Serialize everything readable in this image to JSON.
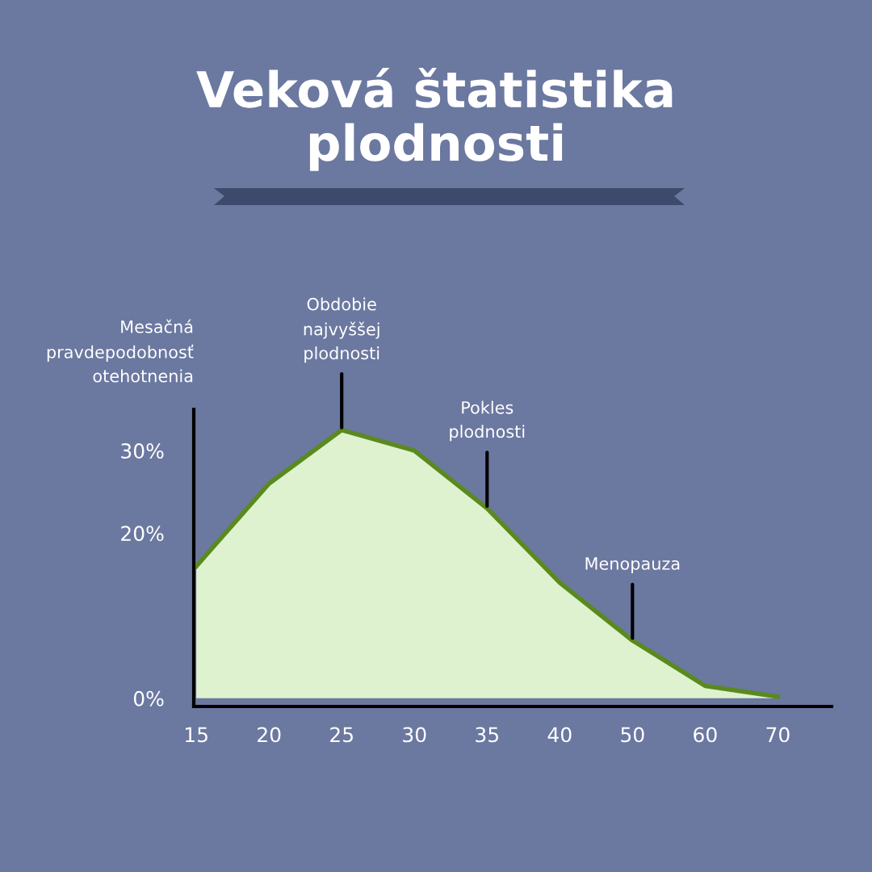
{
  "chart_data": {
    "type": "area",
    "title": "Veková štatistika plodnosti",
    "ylabel": "Mesačná pravdepodobnosť otehotnenia",
    "categories": [
      "15",
      "20",
      "25",
      "30",
      "35",
      "40",
      "50",
      "60",
      "70"
    ],
    "series": [
      {
        "color": "#dff2cf",
        "values": [
          16,
          26,
          32.5,
          30,
          23,
          14,
          7,
          1.5,
          0.2
        ]
      }
    ],
    "ylim": [
      -1,
      35
    ],
    "yticks": [
      {
        "value": 0,
        "label": "0%"
      },
      {
        "value": 20,
        "label": "20%"
      },
      {
        "value": 30,
        "label": "30%"
      }
    ],
    "grid": false,
    "legend": false,
    "annotations": [
      {
        "text": "Obdobie najvyššej plodnosti",
        "x": "25",
        "y": 32.5
      },
      {
        "text": "Pokles plodnosti",
        "x": "35",
        "y": 23
      },
      {
        "text": "Menopauza",
        "x": "50",
        "y": 7
      }
    ]
  }
}
